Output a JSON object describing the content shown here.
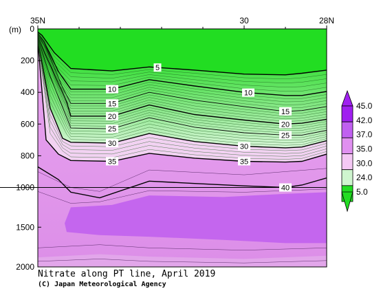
{
  "chart_data": {
    "type": "contour",
    "title": "Nitrate along PT line, April 2019",
    "credit": "(C) Japan Meteorological Agency",
    "x_axis": {
      "range": [
        35,
        28
      ],
      "ticks": [
        {
          "value": 35,
          "label": "35N"
        },
        {
          "value": 30,
          "label": "30"
        },
        {
          "value": 28,
          "label": "28N"
        }
      ]
    },
    "y_axis": {
      "unit_label": "(m)",
      "scale": "piecewise-linear, axis compressed below 1000 m",
      "ticks": [
        {
          "value": 0,
          "label": "0"
        },
        {
          "value": 200,
          "label": "200"
        },
        {
          "value": 400,
          "label": "400"
        },
        {
          "value": 600,
          "label": "600"
        },
        {
          "value": 800,
          "label": "800"
        },
        {
          "value": 1000,
          "label": "1000"
        },
        {
          "value": 1500,
          "label": "1500"
        },
        {
          "value": 2000,
          "label": "2000"
        }
      ]
    },
    "color_scale": [
      {
        "label": "45.0",
        "value": 45.0,
        "color": "#a020f0"
      },
      {
        "label": "42.0",
        "value": 42.0,
        "color": "#c060f0"
      },
      {
        "label": "37.0",
        "value": 37.0,
        "color": "#e090f0"
      },
      {
        "label": "35.0",
        "value": 35.0,
        "color": "#f4c8f4"
      },
      {
        "label": "30.0",
        "value": 30.0,
        "color": "#cff5cf"
      },
      {
        "label": "24.0",
        "value": 24.0,
        "color": "#80e080"
      },
      {
        "label": "5.0",
        "value": 5.0,
        "color": "#22dd22"
      }
    ],
    "contours": [
      {
        "value": 5,
        "points": [
          [
            35,
            20
          ],
          [
            34.9,
            40
          ],
          [
            34.6,
            150
          ],
          [
            34.2,
            250
          ],
          [
            33.2,
            265
          ],
          [
            32.3,
            240
          ],
          [
            31.2,
            260
          ],
          [
            30,
            285
          ],
          [
            29,
            290
          ],
          [
            28.6,
            280
          ],
          [
            28,
            260
          ]
        ]
      },
      {
        "value": 10,
        "points": [
          [
            35,
            30
          ],
          [
            34.85,
            80
          ],
          [
            34.5,
            270
          ],
          [
            34.2,
            380
          ],
          [
            33.2,
            380
          ],
          [
            32.3,
            320
          ],
          [
            31.2,
            360
          ],
          [
            30,
            400
          ],
          [
            29,
            420
          ],
          [
            28.6,
            420
          ],
          [
            28,
            395
          ]
        ]
      },
      {
        "value": 15,
        "points": [
          [
            35,
            40
          ],
          [
            34.8,
            120
          ],
          [
            34.4,
            370
          ],
          [
            34.2,
            470
          ],
          [
            33.2,
            470
          ],
          [
            32.3,
            400
          ],
          [
            31.2,
            450
          ],
          [
            30,
            490
          ],
          [
            29,
            520
          ],
          [
            28.6,
            515
          ],
          [
            28,
            490
          ]
        ]
      },
      {
        "value": 20,
        "points": [
          [
            35,
            50
          ],
          [
            34.75,
            200
          ],
          [
            34.3,
            460
          ],
          [
            34.2,
            550
          ],
          [
            33.2,
            550
          ],
          [
            32.3,
            480
          ],
          [
            31.2,
            540
          ],
          [
            30,
            575
          ],
          [
            29,
            600
          ],
          [
            28.6,
            595
          ],
          [
            28,
            570
          ]
        ]
      },
      {
        "value": 25,
        "points": [
          [
            35,
            60
          ],
          [
            34.7,
            300
          ],
          [
            34.3,
            560
          ],
          [
            34.2,
            625
          ],
          [
            33.2,
            630
          ],
          [
            32.3,
            560
          ],
          [
            31.2,
            620
          ],
          [
            30,
            655
          ],
          [
            29,
            670
          ],
          [
            28.6,
            670
          ],
          [
            28,
            640
          ]
        ]
      },
      {
        "value": 30,
        "points": [
          [
            35,
            70
          ],
          [
            34.7,
            500
          ],
          [
            34.4,
            690
          ],
          [
            34.2,
            715
          ],
          [
            33.2,
            720
          ],
          [
            32.3,
            660
          ],
          [
            31.2,
            710
          ],
          [
            30,
            740
          ],
          [
            29,
            750
          ],
          [
            28.6,
            745
          ],
          [
            28,
            705
          ]
        ]
      },
      {
        "value": 35,
        "points": [
          [
            35,
            80
          ],
          [
            34.8,
            700
          ],
          [
            34.5,
            790
          ],
          [
            34.2,
            830
          ],
          [
            33.2,
            835
          ],
          [
            32.3,
            785
          ],
          [
            31.2,
            815
          ],
          [
            30,
            835
          ],
          [
            29,
            840
          ],
          [
            28.6,
            835
          ],
          [
            28,
            790
          ]
        ]
      },
      {
        "value": 40,
        "points": [
          [
            35,
            870
          ],
          [
            34.5,
            950
          ],
          [
            34.2,
            1060
          ],
          [
            33.5,
            1130
          ],
          [
            32.3,
            960
          ],
          [
            31.2,
            975
          ],
          [
            30,
            990
          ],
          [
            29,
            1000
          ],
          [
            28.6,
            985
          ],
          [
            28,
            940
          ]
        ]
      }
    ],
    "reference_line_depth": 1000
  }
}
